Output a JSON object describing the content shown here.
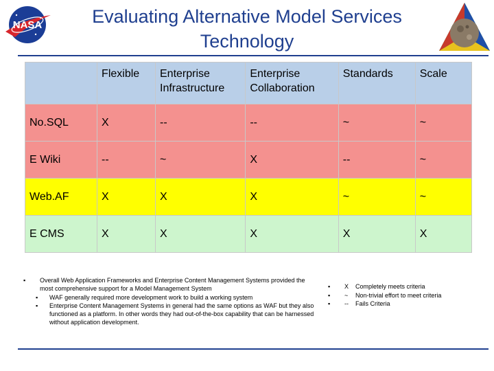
{
  "title": {
    "line1": "Evaluating Alternative Model Services",
    "line2": "Technology"
  },
  "logos": {
    "left": {
      "icon": "nasa-meatball-logo",
      "text": "NASA"
    },
    "right": {
      "icon": "planet-triangle-logo"
    }
  },
  "colors": {
    "title": "#1f3f8f",
    "header": "#b9cfe8",
    "row_red": "#f4918f",
    "row_yellow": "#ffff00",
    "row_green": "#cdf5cd"
  },
  "table": {
    "headers": [
      [
        ""
      ],
      [
        "Flexible"
      ],
      [
        "Enterprise",
        "Infrastructure"
      ],
      [
        "Enterprise",
        "Collaboration"
      ],
      [
        "Standards"
      ],
      [
        "Scale"
      ]
    ],
    "rows": [
      {
        "color": "#f4918f",
        "cells": [
          "No.SQL",
          "X",
          "--",
          "--",
          "~",
          "~"
        ]
      },
      {
        "color": "#f4918f",
        "cells": [
          "E Wiki",
          "--",
          "~",
          "X",
          "--",
          "~"
        ]
      },
      {
        "color": "#ffff00",
        "cells": [
          "Web.AF",
          "X",
          "X",
          "X",
          "~",
          "~"
        ]
      },
      {
        "color": "#cdf5cd",
        "cells": [
          "E CMS",
          "X",
          "X",
          "X",
          "X",
          "X"
        ]
      }
    ]
  },
  "notes": {
    "bullet": "▪",
    "main": "Overall Web Application Frameworks and Enterprise Content Management Systems provided the most comprehensive support for a Model Management System",
    "sub": [
      "WAF generally required more development work to build a working system",
      "Enterprise Content Management Systems in general had the same options as WAF but they also functioned as a platform. In other words they had out-of-the-box capability that can be harnessed without application development."
    ]
  },
  "legend": [
    {
      "symbol": "X",
      "text": "Completely meets criteria"
    },
    {
      "symbol": "~",
      "text": "Non-trivial effort to meet criteria"
    },
    {
      "symbol": "--",
      "text": "Fails Criteria"
    }
  ]
}
